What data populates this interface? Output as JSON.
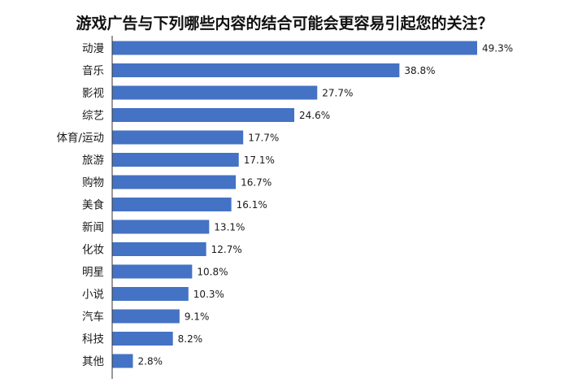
{
  "chart_data": {
    "type": "bar",
    "orientation": "horizontal",
    "title": "游戏广告与下列哪些内容的结合可能会更容易引起您的关注？",
    "categories": [
      "动漫",
      "音乐",
      "影视",
      "综艺",
      "体育/运动",
      "旅游",
      "购物",
      "美食",
      "新闻",
      "化妆",
      "明星",
      "小说",
      "汽车",
      "科技",
      "其他"
    ],
    "values": [
      49.3,
      38.8,
      27.7,
      24.6,
      17.7,
      17.1,
      16.7,
      16.1,
      13.1,
      12.7,
      10.8,
      10.3,
      9.1,
      8.2,
      2.8
    ],
    "value_labels": [
      "49.3%",
      "38.8%",
      "27.7%",
      "24.6%",
      "17.7%",
      "17.1%",
      "16.7%",
      "16.1%",
      "13.1%",
      "12.7%",
      "10.8%",
      "10.3%",
      "9.1%",
      "8.2%",
      "2.8%"
    ],
    "unit": "%",
    "xlim": [
      0,
      49.3
    ],
    "bar_color": "#4472C4",
    "axis_line_color": "#333333",
    "grid": false
  }
}
